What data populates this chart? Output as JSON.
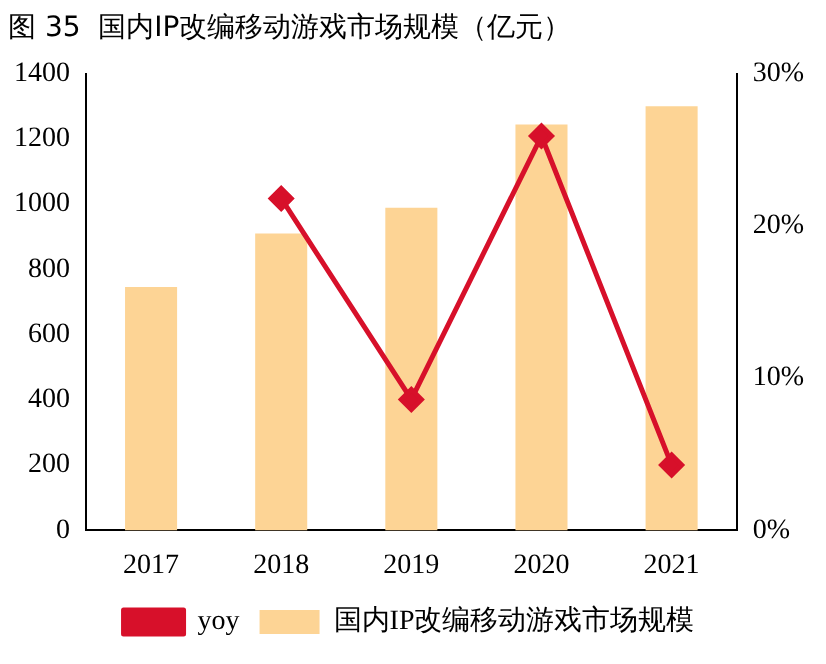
{
  "chart_data": {
    "type": "bar",
    "title": "图 35  国内IP改编移动游戏市场规模（亿元）",
    "categories": [
      "2017",
      "2018",
      "2019",
      "2020",
      "2021"
    ],
    "series": [
      {
        "name": "国内IP改编移动游戏市场规模",
        "color": "#fdd495",
        "values": [
          746,
          910,
          989,
          1244,
          1300
        ]
      },
      {
        "name": "yoy",
        "type": "line",
        "axis": "y2",
        "color": "#d7102a",
        "marker": "diamond",
        "values": [
          null,
          21.8,
          8.6,
          25.9,
          4.3
        ]
      }
    ],
    "ylim": [
      0,
      1400
    ],
    "yticks": [
      0,
      200,
      400,
      600,
      800,
      1000,
      1200,
      1400
    ],
    "y2lim": [
      0,
      30
    ],
    "y2ticks": [
      {
        "value": 0,
        "label": "0%"
      },
      {
        "value": 10,
        "label": "10%"
      },
      {
        "value": 20,
        "label": "20%"
      },
      {
        "value": 30,
        "label": "30%"
      }
    ],
    "grid": false,
    "legend": "bottom"
  }
}
